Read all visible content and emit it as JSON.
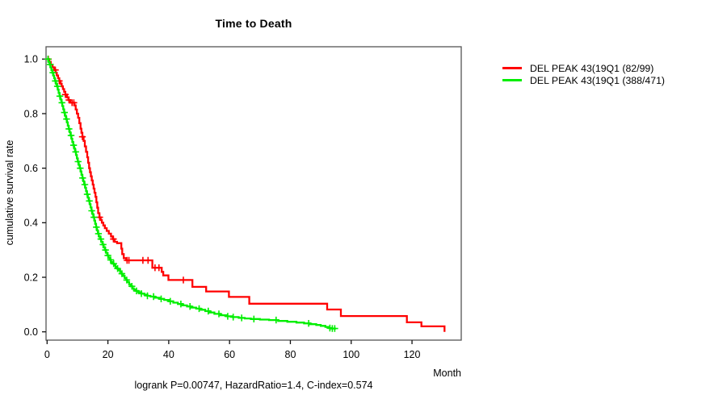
{
  "title": "Time to Death",
  "footer": "logrank P=0.00747, HazardRatio=1.4, C-index=0.574",
  "axes": {
    "x_label": "Month",
    "y_label": "cumulative survival rate"
  },
  "chart_data": {
    "type": "line",
    "subtype": "kaplan_meier_step",
    "title": "Time to Death",
    "xlabel": "Month",
    "ylabel": "cumulative survival rate",
    "xlim": [
      0,
      136
    ],
    "ylim": [
      0,
      1
    ],
    "x_ticks": [
      0,
      20,
      40,
      60,
      80,
      100,
      120
    ],
    "y_ticks": [
      0.0,
      0.2,
      0.4,
      0.6,
      0.8,
      1.0
    ],
    "y_tick_labels": [
      "0.0",
      "0.2",
      "0.4",
      "0.6",
      "0.8",
      "1.0"
    ],
    "grid": false,
    "legend_position": "right-outside-top",
    "annotation": "logrank P=0.00747, HazardRatio=1.4, C-index=0.574",
    "series": [
      {
        "name": "DEL PEAK 43(19Q1 (82/99)",
        "color": "#ff0000",
        "steps": [
          [
            0,
            1.0
          ],
          [
            0.7,
            0.99
          ],
          [
            1.2,
            0.98
          ],
          [
            1.8,
            0.97
          ],
          [
            2.3,
            0.96
          ],
          [
            2.8,
            0.95
          ],
          [
            3.2,
            0.94
          ],
          [
            3.6,
            0.93
          ],
          [
            4.0,
            0.92
          ],
          [
            4.4,
            0.91
          ],
          [
            4.8,
            0.9
          ],
          [
            5.2,
            0.89
          ],
          [
            5.6,
            0.88
          ],
          [
            6.0,
            0.87
          ],
          [
            6.5,
            0.86
          ],
          [
            7.0,
            0.85
          ],
          [
            7.6,
            0.84
          ],
          [
            9.0,
            0.83
          ],
          [
            9.4,
            0.815
          ],
          [
            9.8,
            0.8
          ],
          [
            10.2,
            0.785
          ],
          [
            10.6,
            0.765
          ],
          [
            11.0,
            0.745
          ],
          [
            11.3,
            0.73
          ],
          [
            11.6,
            0.715
          ],
          [
            12.0,
            0.7
          ],
          [
            12.4,
            0.68
          ],
          [
            12.8,
            0.66
          ],
          [
            13.2,
            0.64
          ],
          [
            13.5,
            0.62
          ],
          [
            13.8,
            0.6
          ],
          [
            14.1,
            0.585
          ],
          [
            14.4,
            0.57
          ],
          [
            14.7,
            0.555
          ],
          [
            15.0,
            0.54
          ],
          [
            15.3,
            0.525
          ],
          [
            15.6,
            0.51
          ],
          [
            15.9,
            0.495
          ],
          [
            16.2,
            0.475
          ],
          [
            16.5,
            0.455
          ],
          [
            16.8,
            0.435
          ],
          [
            17.2,
            0.42
          ],
          [
            17.6,
            0.41
          ],
          [
            18.0,
            0.4
          ],
          [
            18.5,
            0.39
          ],
          [
            19.0,
            0.38
          ],
          [
            19.6,
            0.37
          ],
          [
            20.3,
            0.36
          ],
          [
            21.0,
            0.35
          ],
          [
            21.6,
            0.34
          ],
          [
            22.2,
            0.33
          ],
          [
            23.0,
            0.325
          ],
          [
            24.4,
            0.305
          ],
          [
            24.7,
            0.285
          ],
          [
            25.2,
            0.27
          ],
          [
            26.0,
            0.262
          ],
          [
            34.6,
            0.235
          ],
          [
            37.7,
            0.22
          ],
          [
            38.2,
            0.207
          ],
          [
            39.9,
            0.19
          ],
          [
            47.8,
            0.165
          ],
          [
            52.3,
            0.148
          ],
          [
            59.8,
            0.128
          ],
          [
            66.5,
            0.103
          ],
          [
            92.1,
            0.082
          ],
          [
            96.6,
            0.058
          ],
          [
            118.3,
            0.035
          ],
          [
            123.1,
            0.02
          ],
          [
            130.7,
            0.0
          ]
        ],
        "censor_times": [
          0.4,
          2.7,
          4.0,
          6.0,
          7.2,
          8.2,
          8.8,
          11.6,
          17.3,
          21.8,
          26.3,
          26.9,
          31.5,
          33.2,
          35.5,
          36.8,
          44.8
        ]
      },
      {
        "name": "DEL PEAK 43(19Q1 (388/471)",
        "color": "#00ee00",
        "steps": [
          [
            0,
            1.0
          ],
          [
            0.4,
            0.99
          ],
          [
            0.8,
            0.98
          ],
          [
            1.1,
            0.97
          ],
          [
            1.4,
            0.96
          ],
          [
            1.7,
            0.95
          ],
          [
            2.0,
            0.94
          ],
          [
            2.3,
            0.93
          ],
          [
            2.6,
            0.92
          ],
          [
            2.9,
            0.91
          ],
          [
            3.2,
            0.9
          ],
          [
            3.5,
            0.888
          ],
          [
            3.8,
            0.876
          ],
          [
            4.1,
            0.864
          ],
          [
            4.4,
            0.852
          ],
          [
            4.7,
            0.84
          ],
          [
            5.0,
            0.828
          ],
          [
            5.3,
            0.816
          ],
          [
            5.6,
            0.804
          ],
          [
            5.9,
            0.792
          ],
          [
            6.2,
            0.78
          ],
          [
            6.5,
            0.768
          ],
          [
            6.8,
            0.756
          ],
          [
            7.1,
            0.744
          ],
          [
            7.4,
            0.732
          ],
          [
            7.7,
            0.72
          ],
          [
            8.0,
            0.708
          ],
          [
            8.3,
            0.696
          ],
          [
            8.6,
            0.684
          ],
          [
            8.9,
            0.672
          ],
          [
            9.2,
            0.66
          ],
          [
            9.5,
            0.648
          ],
          [
            9.8,
            0.636
          ],
          [
            10.1,
            0.624
          ],
          [
            10.4,
            0.612
          ],
          [
            10.7,
            0.6
          ],
          [
            11.0,
            0.588
          ],
          [
            11.3,
            0.576
          ],
          [
            11.6,
            0.564
          ],
          [
            11.9,
            0.552
          ],
          [
            12.2,
            0.54
          ],
          [
            12.5,
            0.528
          ],
          [
            12.8,
            0.516
          ],
          [
            13.1,
            0.504
          ],
          [
            13.4,
            0.492
          ],
          [
            13.7,
            0.48
          ],
          [
            14.0,
            0.468
          ],
          [
            14.3,
            0.456
          ],
          [
            14.6,
            0.444
          ],
          [
            14.9,
            0.432
          ],
          [
            15.2,
            0.42
          ],
          [
            15.5,
            0.408
          ],
          [
            15.8,
            0.396
          ],
          [
            16.1,
            0.384
          ],
          [
            16.4,
            0.372
          ],
          [
            16.7,
            0.36
          ],
          [
            17.0,
            0.35
          ],
          [
            17.4,
            0.34
          ],
          [
            17.8,
            0.33
          ],
          [
            18.2,
            0.32
          ],
          [
            18.6,
            0.31
          ],
          [
            19.0,
            0.3
          ],
          [
            19.4,
            0.29
          ],
          [
            19.8,
            0.28
          ],
          [
            20.2,
            0.272
          ],
          [
            20.6,
            0.264
          ],
          [
            21.0,
            0.256
          ],
          [
            21.5,
            0.25
          ],
          [
            22.0,
            0.244
          ],
          [
            22.5,
            0.238
          ],
          [
            23.0,
            0.232
          ],
          [
            23.5,
            0.226
          ],
          [
            24.0,
            0.22
          ],
          [
            24.5,
            0.213
          ],
          [
            25.0,
            0.205
          ],
          [
            25.5,
            0.197
          ],
          [
            26.0,
            0.19
          ],
          [
            26.5,
            0.182
          ],
          [
            27.0,
            0.174
          ],
          [
            27.5,
            0.167
          ],
          [
            28.0,
            0.16
          ],
          [
            28.5,
            0.155
          ],
          [
            29.0,
            0.15
          ],
          [
            30.0,
            0.145
          ],
          [
            31.0,
            0.14
          ],
          [
            32.0,
            0.136
          ],
          [
            33.0,
            0.132
          ],
          [
            34.0,
            0.129
          ],
          [
            35.5,
            0.125
          ],
          [
            37.0,
            0.121
          ],
          [
            38.5,
            0.117
          ],
          [
            40.0,
            0.112
          ],
          [
            41.5,
            0.107
          ],
          [
            43.0,
            0.102
          ],
          [
            44.5,
            0.097
          ],
          [
            46.0,
            0.093
          ],
          [
            47.5,
            0.089
          ],
          [
            49.0,
            0.085
          ],
          [
            50.5,
            0.081
          ],
          [
            52.0,
            0.076
          ],
          [
            53.5,
            0.071
          ],
          [
            55.0,
            0.066
          ],
          [
            57.0,
            0.061
          ],
          [
            59.0,
            0.057
          ],
          [
            61.0,
            0.054
          ],
          [
            63.0,
            0.051
          ],
          [
            65.0,
            0.049
          ],
          [
            67.0,
            0.047
          ],
          [
            70.0,
            0.045
          ],
          [
            73.0,
            0.043
          ],
          [
            76.0,
            0.04
          ],
          [
            79.0,
            0.037
          ],
          [
            82.0,
            0.034
          ],
          [
            84.5,
            0.031
          ],
          [
            86.5,
            0.028
          ],
          [
            88.5,
            0.025
          ],
          [
            90.0,
            0.022
          ],
          [
            91.5,
            0.018
          ],
          [
            92.5,
            0.014
          ],
          [
            93.5,
            0.012
          ],
          [
            95.0,
            0.012
          ]
        ],
        "censor_times": [
          0.3,
          1.0,
          1.9,
          2.7,
          3.4,
          4.2,
          4.9,
          5.7,
          6.4,
          7.2,
          7.9,
          8.7,
          9.4,
          10.2,
          10.9,
          11.7,
          12.4,
          13.2,
          13.9,
          14.7,
          15.4,
          16.2,
          16.9,
          17.7,
          18.4,
          19.2,
          20.0,
          20.9,
          21.9,
          23.2,
          24.6,
          26.2,
          27.9,
          29.4,
          31.0,
          33.0,
          35.0,
          37.5,
          40.5,
          44.0,
          47.0,
          50.0,
          53.0,
          56.5,
          59.4,
          61.2,
          64.0,
          68.0,
          75.3,
          86.0,
          93.0,
          93.8,
          94.6
        ]
      }
    ]
  },
  "style": {
    "box_color": "#555555",
    "tick_color": "#111111",
    "background": "#ffffff"
  }
}
